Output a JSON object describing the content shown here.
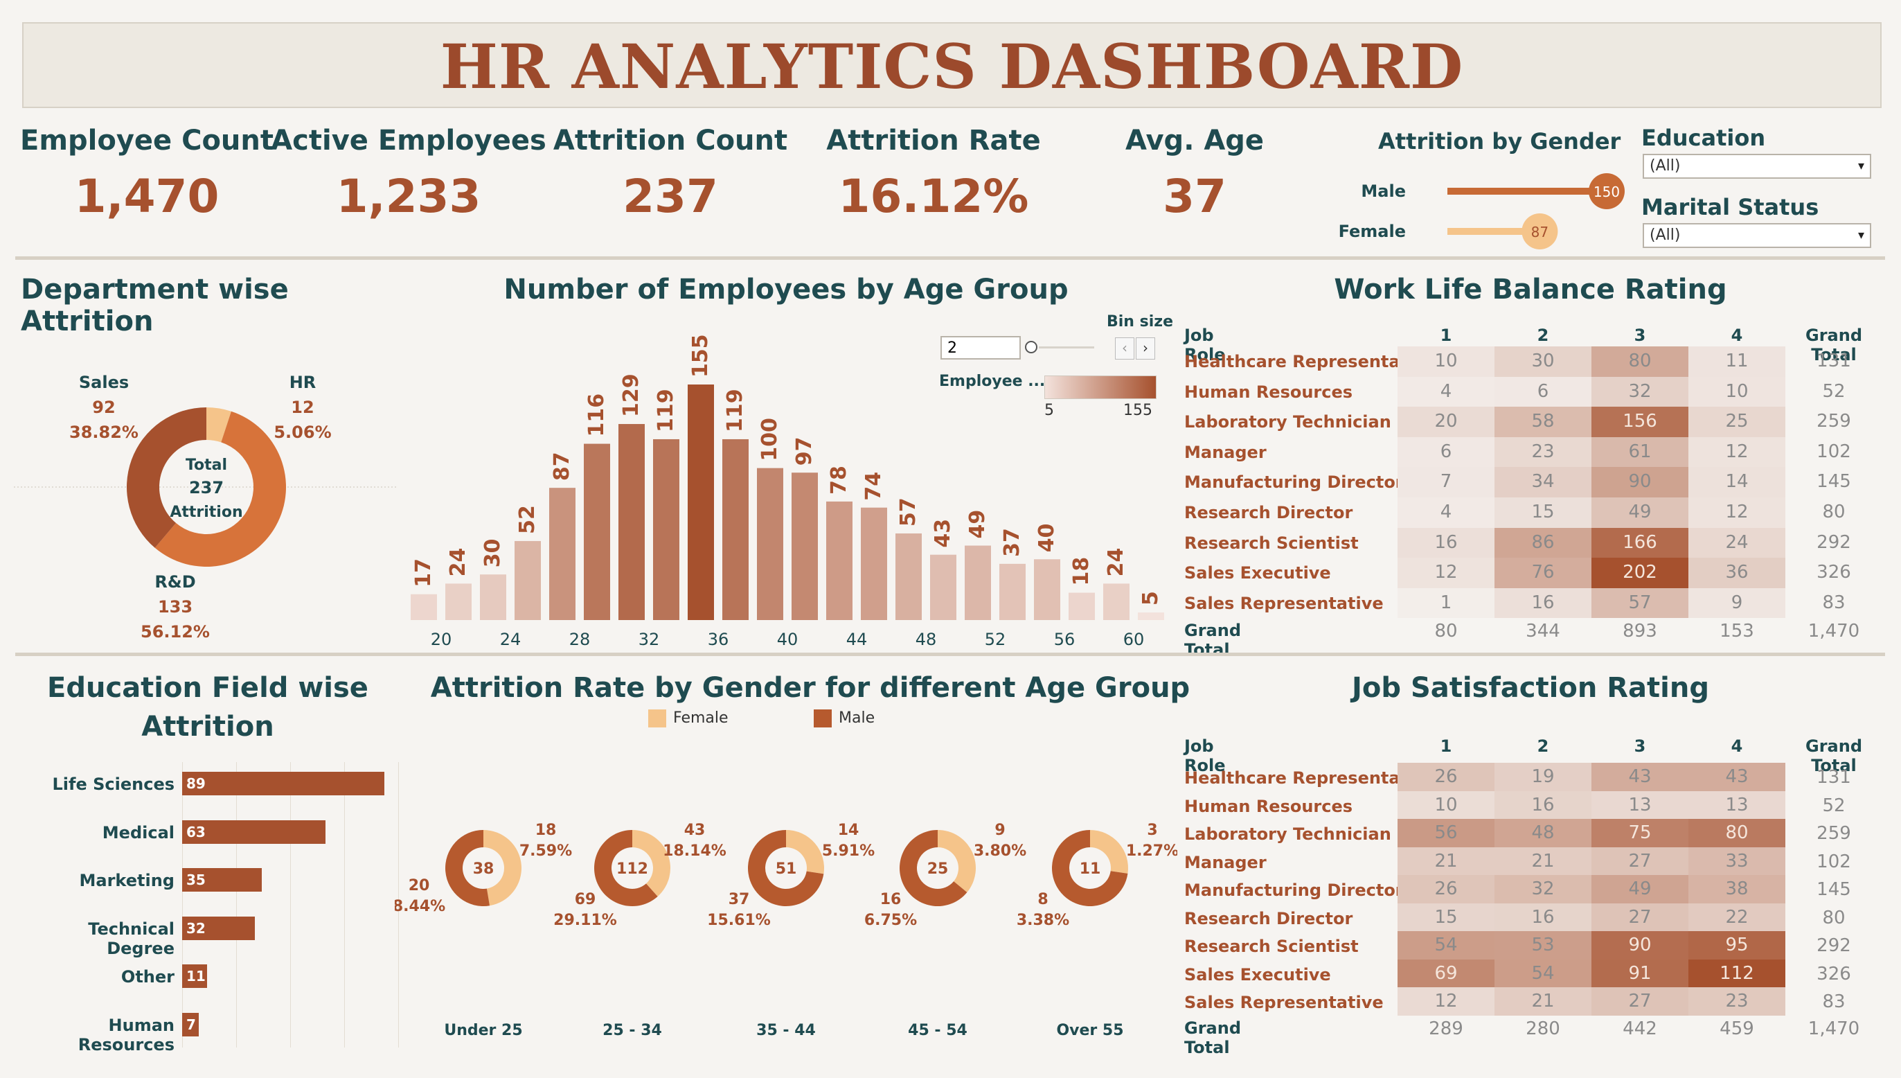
{
  "title": "HR ANALYTICS DASHBOARD",
  "kpis": [
    {
      "label": "Employee Count",
      "value": "1,470"
    },
    {
      "label": "Active Employees",
      "value": "1,233"
    },
    {
      "label": "Attrition Count",
      "value": "237"
    },
    {
      "label": "Attrition Rate",
      "value": "16.12%"
    },
    {
      "label": "Avg. Age",
      "value": "37"
    }
  ],
  "gender_attrition": {
    "title": "Attrition by Gender",
    "male_label": "Male",
    "male_value": "150",
    "male_num": 150,
    "female_label": "Female",
    "female_value": "87",
    "female_num": 87,
    "max": 150
  },
  "filters": {
    "education_label": "Education",
    "education_value": "(All)",
    "marital_label": "Marital Status",
    "marital_value": "(All)"
  },
  "colors": {
    "accent": "#a6512e",
    "teal": "#1f4b50",
    "light": "#f5c48a",
    "mid": "#d7733a"
  },
  "dept": {
    "title": "Department wise Attrition",
    "center_line1": "Total",
    "center_line2": "237",
    "center_line3": "Attrition",
    "sales_name": "Sales",
    "sales_count": "92",
    "sales_pct": "38.82%",
    "hr_name": "HR",
    "hr_count": "12",
    "hr_pct": "5.06%",
    "rd_name": "R&D",
    "rd_count": "133",
    "rd_pct": "56.12%"
  },
  "age_hist": {
    "title": "Number of Employees by Age Group",
    "bin_size_label": "Bin size",
    "bin_value": "2",
    "legend_label": "Employee ...",
    "legend_min": "5",
    "legend_max": "155"
  },
  "edu_field": {
    "title_line1": "Education Field wise",
    "title_line2": "Attrition",
    "items": [
      {
        "label": "Life Sciences",
        "value": "89",
        "num": 89
      },
      {
        "label": "Medical",
        "value": "63",
        "num": 63
      },
      {
        "label": "Marketing",
        "value": "35",
        "num": 35
      },
      {
        "label": "Technical Degree",
        "value": "32",
        "num": 32
      },
      {
        "label": "Other",
        "value": "11",
        "num": 11
      },
      {
        "label": "Human Resources",
        "value": "7",
        "num": 7
      }
    ]
  },
  "gender_age": {
    "title": "Attrition Rate by Gender for different Age Group",
    "legend_female": "Female",
    "legend_male": "Male",
    "groups": [
      {
        "label": "Under 25",
        "total": "38",
        "female": "18",
        "female_pct": "7.59%",
        "male": "20",
        "male_pct": "8.44%",
        "f": 18,
        "m": 20
      },
      {
        "label": "25 - 34",
        "total": "112",
        "female": "43",
        "female_pct": "18.14%",
        "male": "69",
        "male_pct": "29.11%",
        "f": 43,
        "m": 69
      },
      {
        "label": "35 - 44",
        "total": "51",
        "female": "14",
        "female_pct": "5.91%",
        "male": "37",
        "male_pct": "15.61%",
        "f": 14,
        "m": 37
      },
      {
        "label": "45 - 54",
        "total": "25",
        "female": "9",
        "female_pct": "3.80%",
        "male": "16",
        "male_pct": "6.75%",
        "f": 9,
        "m": 16
      },
      {
        "label": "Over 55",
        "total": "11",
        "female": "3",
        "female_pct": "1.27%",
        "male": "8",
        "male_pct": "3.38%",
        "f": 3,
        "m": 8
      }
    ]
  },
  "wlb": {
    "title": "Work Life Balance Rating",
    "headers": [
      "Job Role",
      "1",
      "2",
      "3",
      "4",
      "Grand Total"
    ],
    "rows": [
      {
        "role": "Healthcare Representative",
        "vals": [
          10,
          30,
          80,
          11
        ],
        "total": "131"
      },
      {
        "role": "Human Resources",
        "vals": [
          4,
          6,
          32,
          10
        ],
        "total": "52"
      },
      {
        "role": "Laboratory Technician",
        "vals": [
          20,
          58,
          156,
          25
        ],
        "total": "259"
      },
      {
        "role": "Manager",
        "vals": [
          6,
          23,
          61,
          12
        ],
        "total": "102"
      },
      {
        "role": "Manufacturing Director",
        "vals": [
          7,
          34,
          90,
          14
        ],
        "total": "145"
      },
      {
        "role": "Research Director",
        "vals": [
          4,
          15,
          49,
          12
        ],
        "total": "80"
      },
      {
        "role": "Research Scientist",
        "vals": [
          16,
          86,
          166,
          24
        ],
        "total": "292"
      },
      {
        "role": "Sales Executive",
        "vals": [
          12,
          76,
          202,
          36
        ],
        "total": "326"
      },
      {
        "role": "Sales Representative",
        "vals": [
          1,
          16,
          57,
          9
        ],
        "total": "83"
      }
    ],
    "grand_label": "Grand Total",
    "grand": [
      "80",
      "344",
      "893",
      "153",
      "1,470"
    ],
    "max": 202
  },
  "js": {
    "title": "Job Satisfaction Rating",
    "headers": [
      "Job Role",
      "1",
      "2",
      "3",
      "4",
      "Grand Total"
    ],
    "rows": [
      {
        "role": "Healthcare Representative",
        "vals": [
          26,
          19,
          43,
          43
        ],
        "total": "131"
      },
      {
        "role": "Human Resources",
        "vals": [
          10,
          16,
          13,
          13
        ],
        "total": "52"
      },
      {
        "role": "Laboratory Technician",
        "vals": [
          56,
          48,
          75,
          80
        ],
        "total": "259"
      },
      {
        "role": "Manager",
        "vals": [
          21,
          21,
          27,
          33
        ],
        "total": "102"
      },
      {
        "role": "Manufacturing Director",
        "vals": [
          26,
          32,
          49,
          38
        ],
        "total": "145"
      },
      {
        "role": "Research Director",
        "vals": [
          15,
          16,
          27,
          22
        ],
        "total": "80"
      },
      {
        "role": "Research Scientist",
        "vals": [
          54,
          53,
          90,
          95
        ],
        "total": "292"
      },
      {
        "role": "Sales Executive",
        "vals": [
          69,
          54,
          91,
          112
        ],
        "total": "326"
      },
      {
        "role": "Sales Representative",
        "vals": [
          12,
          21,
          27,
          23
        ],
        "total": "83"
      }
    ],
    "grand_label": "Grand Total",
    "grand": [
      "289",
      "280",
      "442",
      "459",
      "1,470"
    ],
    "max": 112
  },
  "chart_data": [
    {
      "type": "pie",
      "title": "Department wise Attrition",
      "categories": [
        "Sales",
        "HR",
        "R&D"
      ],
      "values": [
        92,
        12,
        133
      ]
    },
    {
      "type": "bar",
      "title": "Number of Employees by Age Group",
      "categories": [
        "18",
        "20",
        "22",
        "24",
        "26",
        "28",
        "30",
        "32",
        "34",
        "36",
        "38",
        "40",
        "42",
        "44",
        "46",
        "48",
        "50",
        "52",
        "54",
        "56",
        "58",
        "60"
      ],
      "values": [
        17,
        24,
        30,
        52,
        87,
        116,
        129,
        119,
        155,
        119,
        100,
        97,
        78,
        74,
        57,
        43,
        49,
        37,
        40,
        18,
        24,
        5
      ],
      "x_ticks": [
        "20",
        "24",
        "28",
        "32",
        "36",
        "40",
        "44",
        "48",
        "52",
        "56",
        "60"
      ],
      "ylim": [
        0,
        155
      ]
    },
    {
      "type": "bar",
      "title": "Education Field wise Attrition",
      "categories": [
        "Life Sciences",
        "Medical",
        "Marketing",
        "Technical Degree",
        "Other",
        "Human Resources"
      ],
      "values": [
        89,
        63,
        35,
        32,
        11,
        7
      ]
    },
    {
      "type": "pie",
      "title": "Attrition Rate by Gender for different Age Group",
      "categories": [
        "Under 25",
        "25 - 34",
        "35 - 44",
        "45 - 54",
        "Over 55"
      ],
      "series": [
        {
          "name": "Female",
          "values": [
            18,
            43,
            14,
            9,
            3
          ]
        },
        {
          "name": "Male",
          "values": [
            20,
            69,
            37,
            16,
            8
          ]
        }
      ]
    },
    {
      "type": "heatmap",
      "title": "Work Life Balance Rating",
      "categories": [
        "1",
        "2",
        "3",
        "4"
      ]
    },
    {
      "type": "heatmap",
      "title": "Job Satisfaction Rating",
      "categories": [
        "1",
        "2",
        "3",
        "4"
      ]
    }
  ]
}
